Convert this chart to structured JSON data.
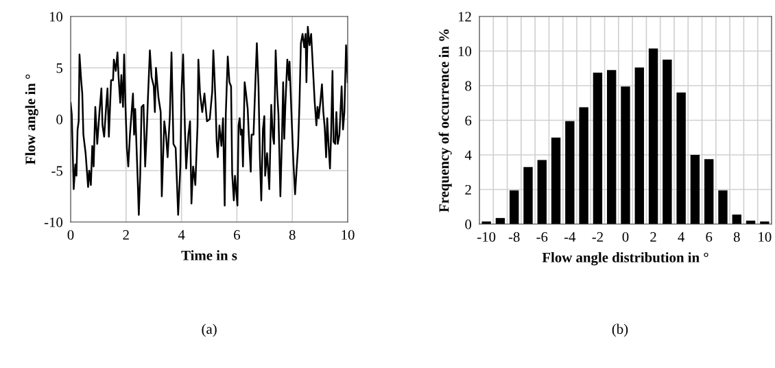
{
  "chart_data": [
    {
      "type": "line",
      "xlabel": "Time in s",
      "ylabel": "Flow angle in °",
      "color": "#000000",
      "xlim": [
        0,
        10
      ],
      "ylim": [
        -10,
        10
      ],
      "xticks": [
        0,
        2,
        4,
        6,
        8,
        10
      ],
      "yticks": [
        -10,
        -5,
        0,
        5,
        10
      ],
      "grid": true,
      "marker": "none",
      "line_style": "solid",
      "x": [
        0,
        0.04,
        0.11,
        0.17,
        0.21,
        0.25,
        0.29,
        0.32,
        0.38,
        0.42,
        0.46,
        0.54,
        0.63,
        0.67,
        0.73,
        0.78,
        0.83,
        0.89,
        0.96,
        1.04,
        1.11,
        1.15,
        1.21,
        1.28,
        1.33,
        1.38,
        1.46,
        1.53,
        1.56,
        1.63,
        1.69,
        1.73,
        1.79,
        1.83,
        1.89,
        1.93,
        1.98,
        2.03,
        2.08,
        2.14,
        2.19,
        2.25,
        2.29,
        2.33,
        2.42,
        2.46,
        2.51,
        2.56,
        2.63,
        2.69,
        2.75,
        2.79,
        2.86,
        2.92,
        3.0,
        3.04,
        3.08,
        3.17,
        3.25,
        3.29,
        3.38,
        3.44,
        3.5,
        3.58,
        3.64,
        3.71,
        3.79,
        3.88,
        3.96,
        4.0,
        4.06,
        4.13,
        4.17,
        4.25,
        4.31,
        4.36,
        4.42,
        4.5,
        4.58,
        4.61,
        4.67,
        4.75,
        4.83,
        4.92,
        5.02,
        5.11,
        5.15,
        5.19,
        5.23,
        5.27,
        5.31,
        5.37,
        5.44,
        5.5,
        5.56,
        5.6,
        5.67,
        5.73,
        5.79,
        5.83,
        5.89,
        5.93,
        6.02,
        6.06,
        6.1,
        6.14,
        6.18,
        6.22,
        6.28,
        6.33,
        6.39,
        6.43,
        6.5,
        6.53,
        6.6,
        6.68,
        6.72,
        6.78,
        6.83,
        6.88,
        6.94,
        6.99,
        7.02,
        7.09,
        7.17,
        7.24,
        7.3,
        7.34,
        7.4,
        7.46,
        7.5,
        7.57,
        7.63,
        7.67,
        7.71,
        7.75,
        7.82,
        7.88,
        7.9,
        7.98,
        8.04,
        8.1,
        8.15,
        8.21,
        8.26,
        8.31,
        8.37,
        8.43,
        8.48,
        8.51,
        8.56,
        8.62,
        8.68,
        8.74,
        8.81,
        8.87,
        8.91,
        8.95,
        9.01,
        9.07,
        9.12,
        9.17,
        9.22,
        9.26,
        9.31,
        9.36,
        9.4,
        9.45,
        9.49,
        9.55,
        9.59,
        9.64,
        9.7,
        9.78,
        9.83,
        9.88,
        9.94,
        10.0
      ],
      "values": [
        1.6,
        0.5,
        -6.8,
        -4.4,
        -5.5,
        -1,
        -0.2,
        6.3,
        3.8,
        2.5,
        -1.5,
        -3.3,
        -6.6,
        -5,
        -6.4,
        -2.6,
        -4.6,
        1.2,
        -2.4,
        0.7,
        3,
        -0.6,
        -1.7,
        1.2,
        3,
        -1.7,
        3.8,
        3.8,
        5.8,
        4.7,
        6.5,
        4.1,
        1.6,
        4.3,
        1.2,
        6.3,
        1.2,
        -2.8,
        -4.6,
        -1.5,
        0.3,
        2.5,
        -1.5,
        1,
        -5.9,
        -9.3,
        -5.5,
        1.2,
        1.4,
        -4.6,
        -1,
        2.1,
        6.7,
        4.1,
        3.2,
        0.7,
        5,
        2.1,
        0.7,
        -7.5,
        -0.2,
        -1.5,
        -3.7,
        0.3,
        6.5,
        -2.4,
        -2.8,
        -9.3,
        -4.6,
        2.5,
        6.3,
        -1.5,
        -4.8,
        -1.5,
        -0.2,
        -8.2,
        -4.6,
        -6.4,
        -0.6,
        5.8,
        2.5,
        0.7,
        2.5,
        -0.2,
        0,
        2.7,
        6.7,
        4.3,
        1.6,
        -2.2,
        -3.7,
        -0.6,
        -2.6,
        0.1,
        -8.4,
        0.5,
        6.1,
        3.6,
        3.2,
        -5.3,
        -7.9,
        -5.5,
        -8.4,
        -0.6,
        0.1,
        -1.5,
        -1,
        -4.6,
        3.6,
        2.5,
        1,
        -1.5,
        -5.1,
        -1.5,
        -1.5,
        4.5,
        7.4,
        3.2,
        -3.7,
        -7.9,
        -1,
        0.3,
        -5.5,
        -3.3,
        -6.8,
        1.4,
        -1.7,
        -2.4,
        6.7,
        2.3,
        0.5,
        -7.5,
        -1.5,
        3.6,
        -1.9,
        1.4,
        5.8,
        3.8,
        5.6,
        -0.2,
        -4.2,
        -7.3,
        -5.1,
        -2.6,
        1.6,
        7.4,
        8.3,
        7,
        8.3,
        3.6,
        9,
        7.2,
        8.3,
        5.2,
        1.6,
        -0.6,
        1.2,
        0.1,
        1.6,
        3.4,
        0.7,
        -0.8,
        -3.7,
        0.1,
        -2.6,
        -4.8,
        -1.5,
        4.7,
        -2.2,
        -2.4,
        0.7,
        -2.4,
        -1.5,
        3.2,
        -1,
        0.7,
        7.2,
        3.6
      ],
      "annotations": [
        "(a)"
      ]
    },
    {
      "type": "bar",
      "xlabel": "Flow angle distribution in °",
      "ylabel": "Frequency of occurrence in %",
      "color": "#000000",
      "categories": [
        "-10",
        null,
        "-8",
        null,
        "-6",
        null,
        "-4",
        null,
        "-2",
        null,
        "0",
        null,
        "2",
        null,
        "4",
        null,
        "6",
        null,
        "8",
        null,
        "10"
      ],
      "values": [
        0.15,
        0.35,
        1.95,
        3.3,
        3.7,
        5.0,
        5.95,
        6.75,
        8.75,
        8.9,
        7.95,
        9.05,
        10.15,
        9.5,
        7.6,
        4.0,
        3.75,
        1.95,
        0.55,
        0.2,
        0.15
      ],
      "ylim": [
        0,
        12
      ],
      "yticks": [
        0,
        2,
        4,
        6,
        8,
        10,
        12
      ],
      "grid": true,
      "annotations": [
        "(b)"
      ]
    }
  ]
}
